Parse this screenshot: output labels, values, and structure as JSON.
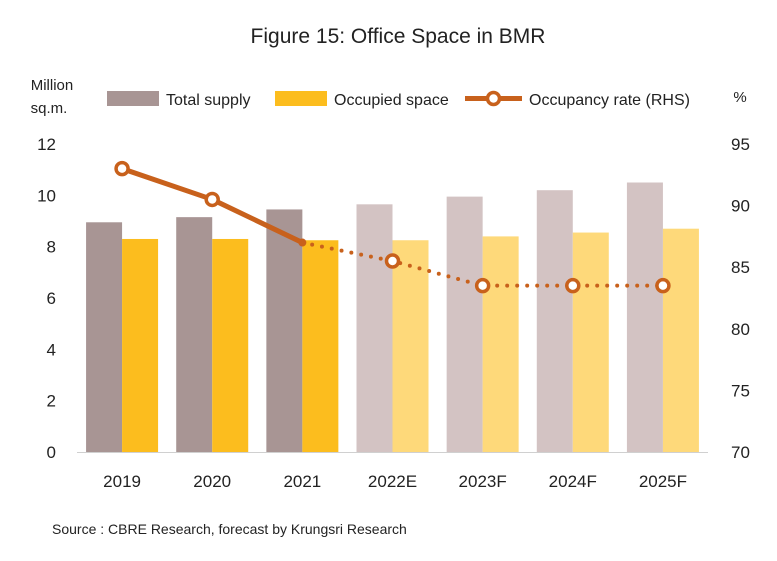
{
  "chart_data": {
    "type": "bar",
    "title": "Figure 15: Office Space in BMR",
    "y_left_unit": [
      "Million",
      "sq.m."
    ],
    "y_right_unit": "%",
    "categories": [
      "2019",
      "2020",
      "2021",
      "2022E",
      "2023F",
      "2024F",
      "2025F"
    ],
    "forecast_start_index": 3,
    "ylim_left": [
      0,
      12
    ],
    "yticks_left": [
      "0",
      "2",
      "4",
      "6",
      "8",
      "10",
      "12"
    ],
    "ylim_right": [
      70,
      95
    ],
    "yticks_right": [
      "70",
      "75",
      "80",
      "85",
      "90",
      "95"
    ],
    "series": [
      {
        "name": "Total supply",
        "kind": "bar",
        "axis": "left",
        "color": "#a89594",
        "forecast_color": "#d3c3c3",
        "values": [
          8.95,
          9.15,
          9.45,
          9.65,
          9.95,
          10.2,
          10.5
        ]
      },
      {
        "name": "Occupied space",
        "kind": "bar",
        "axis": "left",
        "color": "#fcbd1e",
        "forecast_color": "#fed97a",
        "values": [
          8.3,
          8.3,
          8.25,
          8.25,
          8.4,
          8.55,
          8.7
        ]
      },
      {
        "name": "Occupancy rate (RHS)",
        "kind": "line",
        "axis": "right",
        "color": "#c8611c",
        "values": [
          93.0,
          90.5,
          87.0,
          85.5,
          83.5,
          83.5,
          83.5
        ]
      }
    ],
    "legend": [
      "Total supply",
      "Occupied space",
      "Occupancy rate (RHS)"
    ],
    "legend_position": "top",
    "grid": false,
    "source": "Source : CBRE Research, forecast by Krungsri Research"
  }
}
